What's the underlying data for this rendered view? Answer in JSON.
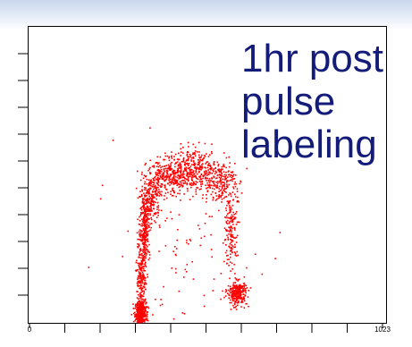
{
  "chart_data": {
    "type": "scatter",
    "title": "",
    "xlabel": "",
    "ylabel": "",
    "xlim": [
      0,
      1023
    ],
    "ylim": [
      0,
      1
    ],
    "x_tick_labels": [
      "0",
      "1023"
    ],
    "grid": false,
    "marker_color": "#ff0000",
    "annotation_lines": [
      "1hr post",
      "pulse",
      "labeling"
    ],
    "density_components": [
      {
        "x": 320,
        "y": 0.03,
        "sx": 8,
        "sy": 0.02,
        "weight": 0.18
      },
      {
        "x": 322,
        "y": 0.15,
        "sx": 7,
        "sy": 0.07,
        "weight": 0.1
      },
      {
        "x": 333,
        "y": 0.32,
        "sx": 7,
        "sy": 0.05,
        "weight": 0.09
      },
      {
        "x": 350,
        "y": 0.42,
        "sx": 14,
        "sy": 0.04,
        "weight": 0.09
      },
      {
        "x": 400,
        "y": 0.49,
        "sx": 30,
        "sy": 0.03,
        "weight": 0.11
      },
      {
        "x": 475,
        "y": 0.52,
        "sx": 35,
        "sy": 0.035,
        "weight": 0.13
      },
      {
        "x": 545,
        "y": 0.48,
        "sx": 25,
        "sy": 0.035,
        "weight": 0.08
      },
      {
        "x": 583,
        "y": 0.32,
        "sx": 9,
        "sy": 0.08,
        "weight": 0.07
      },
      {
        "x": 600,
        "y": 0.1,
        "sx": 14,
        "sy": 0.02,
        "weight": 0.11
      },
      {
        "x": 450,
        "y": 0.25,
        "sx": 100,
        "sy": 0.16,
        "weight": 0.04
      }
    ]
  }
}
